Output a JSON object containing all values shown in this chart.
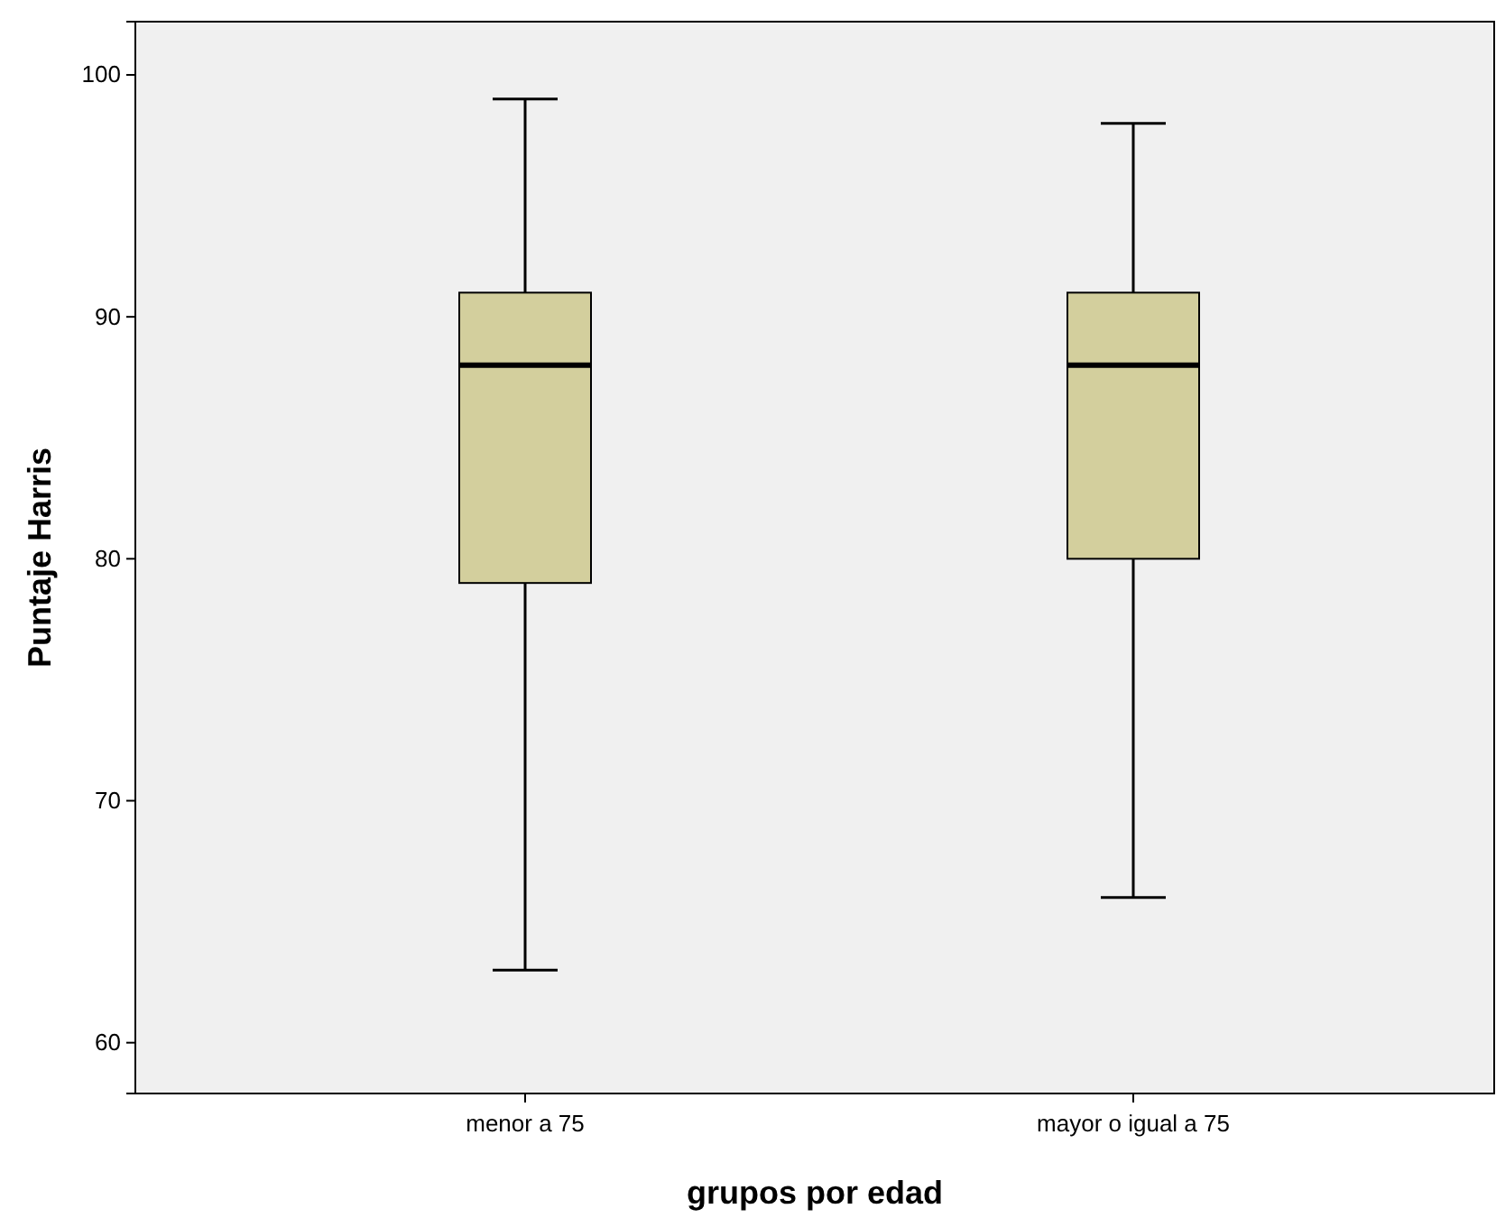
{
  "chart_data": {
    "type": "box",
    "xlabel": "grupos por edad",
    "ylabel": "Puntaje Harris",
    "categories": [
      "menor a 75",
      "mayor o igual a 75"
    ],
    "boxes": [
      {
        "low": 63,
        "q1": 79,
        "median": 88,
        "q3": 91,
        "high": 99
      },
      {
        "low": 66,
        "q1": 80,
        "median": 88,
        "q3": 91,
        "high": 98
      }
    ],
    "color": "#d3cf9d",
    "ylim": [
      57.9,
      102.2
    ],
    "yticks": [
      60,
      70,
      80,
      90,
      100
    ],
    "grid": false
  }
}
